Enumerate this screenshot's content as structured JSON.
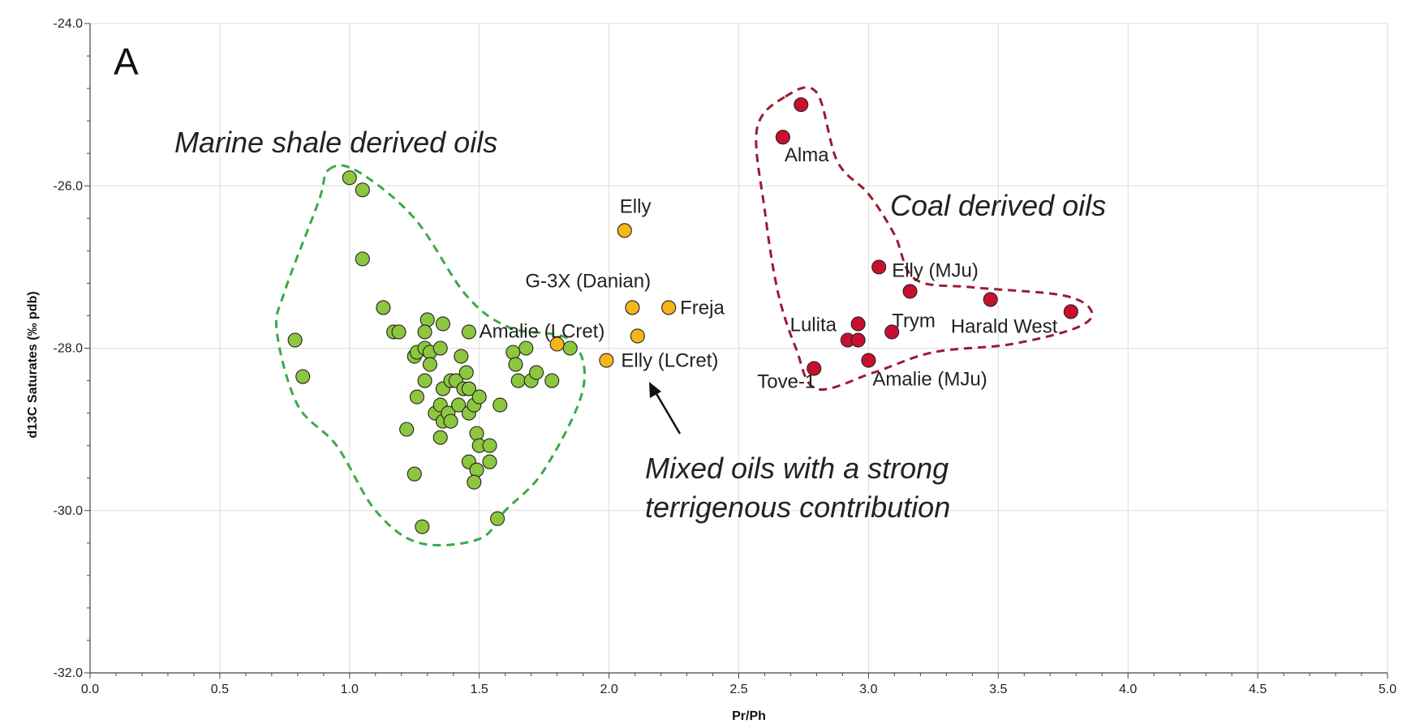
{
  "chart_data": {
    "type": "scatter",
    "panel_label": "A",
    "xlabel": "Pr/Ph",
    "ylabel": "d13C Saturates (‰ pdb)",
    "xlim": [
      0.0,
      5.0
    ],
    "ylim": [
      -32.0,
      -24.0
    ],
    "x_ticks": [
      "0.0",
      "0.5",
      "1.0",
      "1.5",
      "2.0",
      "2.5",
      "3.0",
      "3.5",
      "4.0",
      "4.5",
      "5.0"
    ],
    "y_ticks": [
      "-24.0",
      "-26.0",
      "-28.0",
      "-30.0",
      "-32.0"
    ],
    "grid": true,
    "colors": {
      "marine": "#8dc63f",
      "mixed": "#f7b519",
      "coal": "#c8102e",
      "marine_outline": "#3aaa4a",
      "coal_outline": "#9b1b30"
    },
    "groups": [
      {
        "label": "Marine shale derived oils",
        "points": [
          {
            "x": 1.0,
            "y": -25.9
          },
          {
            "x": 1.05,
            "y": -26.05
          },
          {
            "x": 1.05,
            "y": -26.9
          },
          {
            "x": 0.79,
            "y": -27.9
          },
          {
            "x": 0.82,
            "y": -28.35
          },
          {
            "x": 1.13,
            "y": -27.5
          },
          {
            "x": 1.17,
            "y": -27.8
          },
          {
            "x": 1.19,
            "y": -27.8
          },
          {
            "x": 1.25,
            "y": -28.1
          },
          {
            "x": 1.26,
            "y": -28.05
          },
          {
            "x": 1.3,
            "y": -27.65
          },
          {
            "x": 1.29,
            "y": -27.8
          },
          {
            "x": 1.29,
            "y": -28.0
          },
          {
            "x": 1.31,
            "y": -28.05
          },
          {
            "x": 1.31,
            "y": -28.2
          },
          {
            "x": 1.35,
            "y": -28.0
          },
          {
            "x": 1.36,
            "y": -27.7
          },
          {
            "x": 1.46,
            "y": -27.8
          },
          {
            "x": 1.26,
            "y": -28.6
          },
          {
            "x": 1.29,
            "y": -28.4
          },
          {
            "x": 1.36,
            "y": -28.5
          },
          {
            "x": 1.39,
            "y": -28.4
          },
          {
            "x": 1.41,
            "y": -28.4
          },
          {
            "x": 1.44,
            "y": -28.5
          },
          {
            "x": 1.45,
            "y": -28.3
          },
          {
            "x": 1.43,
            "y": -28.1
          },
          {
            "x": 1.46,
            "y": -28.5
          },
          {
            "x": 1.33,
            "y": -28.8
          },
          {
            "x": 1.35,
            "y": -28.7
          },
          {
            "x": 1.36,
            "y": -28.9
          },
          {
            "x": 1.38,
            "y": -28.8
          },
          {
            "x": 1.42,
            "y": -28.7
          },
          {
            "x": 1.39,
            "y": -28.9
          },
          {
            "x": 1.46,
            "y": -28.8
          },
          {
            "x": 1.48,
            "y": -28.7
          },
          {
            "x": 1.5,
            "y": -28.6
          },
          {
            "x": 1.22,
            "y": -29.0
          },
          {
            "x": 1.35,
            "y": -29.1
          },
          {
            "x": 1.49,
            "y": -29.05
          },
          {
            "x": 1.5,
            "y": -29.2
          },
          {
            "x": 1.54,
            "y": -29.2
          },
          {
            "x": 1.58,
            "y": -28.7
          },
          {
            "x": 1.46,
            "y": -29.4
          },
          {
            "x": 1.49,
            "y": -29.5
          },
          {
            "x": 1.54,
            "y": -29.4
          },
          {
            "x": 1.25,
            "y": -29.55
          },
          {
            "x": 1.48,
            "y": -29.65
          },
          {
            "x": 1.28,
            "y": -30.2
          },
          {
            "x": 1.57,
            "y": -30.1
          },
          {
            "x": 1.63,
            "y": -28.05
          },
          {
            "x": 1.64,
            "y": -28.2
          },
          {
            "x": 1.68,
            "y": -28.0
          },
          {
            "x": 1.65,
            "y": -28.4
          },
          {
            "x": 1.7,
            "y": -28.4
          },
          {
            "x": 1.72,
            "y": -28.3
          },
          {
            "x": 1.78,
            "y": -28.4
          },
          {
            "x": 1.85,
            "y": -28.0
          }
        ]
      },
      {
        "label": "Mixed oils with a strong terrigenous contribution",
        "points": [
          {
            "x": 2.06,
            "y": -26.55,
            "name": "Elly"
          },
          {
            "x": 2.09,
            "y": -27.5,
            "name": "G-3X (Danian)"
          },
          {
            "x": 2.23,
            "y": -27.5,
            "name": "Freja"
          },
          {
            "x": 1.8,
            "y": -27.95,
            "name": "Amalie (LCret)"
          },
          {
            "x": 2.11,
            "y": -27.85
          },
          {
            "x": 1.99,
            "y": -28.15,
            "name": "Elly (LCret)"
          }
        ]
      },
      {
        "label": "Coal derived oils",
        "points": [
          {
            "x": 2.74,
            "y": -25.0
          },
          {
            "x": 2.67,
            "y": -25.4,
            "name": "Alma"
          },
          {
            "x": 3.04,
            "y": -27.0,
            "name": "Elly (MJu)"
          },
          {
            "x": 3.16,
            "y": -27.3
          },
          {
            "x": 3.47,
            "y": -27.4
          },
          {
            "x": 3.78,
            "y": -27.55,
            "name": "Harald West"
          },
          {
            "x": 2.96,
            "y": -27.7,
            "name": "Lulita"
          },
          {
            "x": 3.09,
            "y": -27.8,
            "name": "Trym"
          },
          {
            "x": 2.92,
            "y": -27.9
          },
          {
            "x": 2.96,
            "y": -27.9
          },
          {
            "x": 3.0,
            "y": -28.15,
            "name": "Amalie (MJu)"
          },
          {
            "x": 2.79,
            "y": -28.25,
            "name": "Tove-1"
          }
        ]
      }
    ],
    "annotations": [
      {
        "text": "Marine shale derived oils"
      },
      {
        "text": "Coal derived oils"
      },
      {
        "text_lines": [
          "Mixed oils with a strong",
          "terrigenous contribution"
        ]
      }
    ]
  }
}
